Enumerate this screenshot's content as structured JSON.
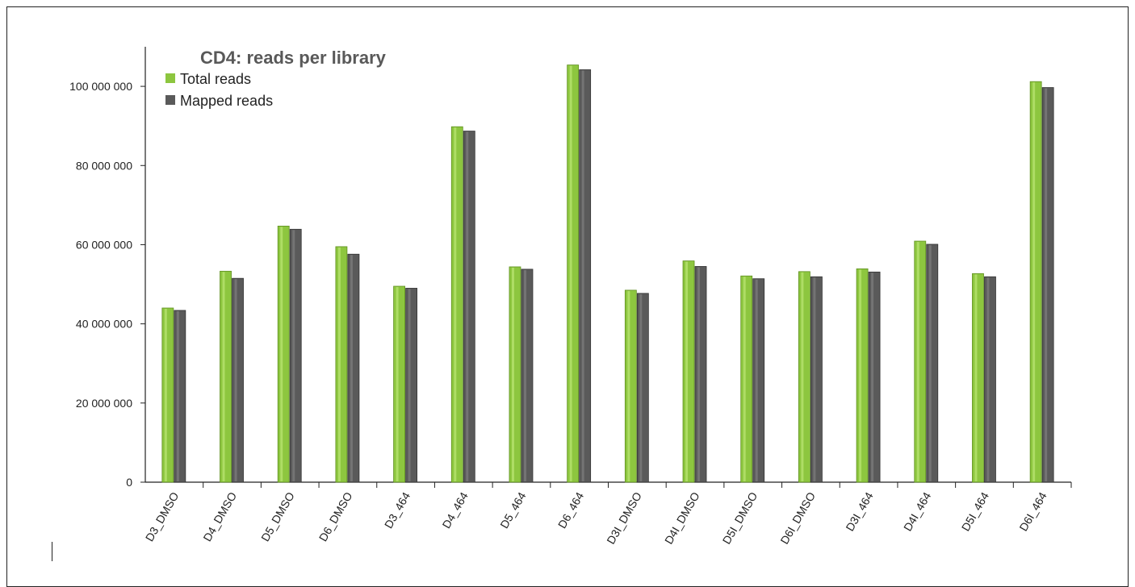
{
  "chart_data": {
    "type": "bar",
    "title": "CD4: reads per library",
    "xlabel": "",
    "ylabel": "",
    "ylim": [
      0,
      110000000
    ],
    "yticks": [
      0,
      20000000,
      40000000,
      60000000,
      80000000,
      100000000
    ],
    "ytick_labels": [
      "0",
      "20 000 000",
      "40 000 000",
      "60 000 000",
      "80 000 000",
      "100 000 000"
    ],
    "categories": [
      "D3_DMSO",
      "D4_DMSO",
      "D5_DMSO",
      "D6_DMSO",
      "D3_464",
      "D4_464",
      "D5_464",
      "D6_464",
      "D3I_DMSO",
      "D4I_DMSO",
      "D5I_DMSO",
      "D6I_DMSO",
      "D3I_464",
      "D4I_464",
      "D5I_464",
      "D6I_464"
    ],
    "series": [
      {
        "name": "Total reads",
        "color": "#8dc63f",
        "values": [
          44000000,
          53300000,
          64700000,
          59500000,
          49500000,
          89800000,
          54400000,
          105400000,
          48500000,
          55900000,
          52100000,
          53200000,
          53900000,
          60900000,
          52700000,
          101200000
        ]
      },
      {
        "name": "Mapped reads",
        "color": "#5a5a5a",
        "values": [
          43400000,
          51500000,
          63900000,
          57600000,
          49000000,
          88700000,
          53800000,
          104200000,
          47700000,
          54500000,
          51400000,
          51900000,
          53100000,
          60100000,
          51900000,
          99700000
        ]
      }
    ],
    "legend": "top-left",
    "grid": false
  }
}
